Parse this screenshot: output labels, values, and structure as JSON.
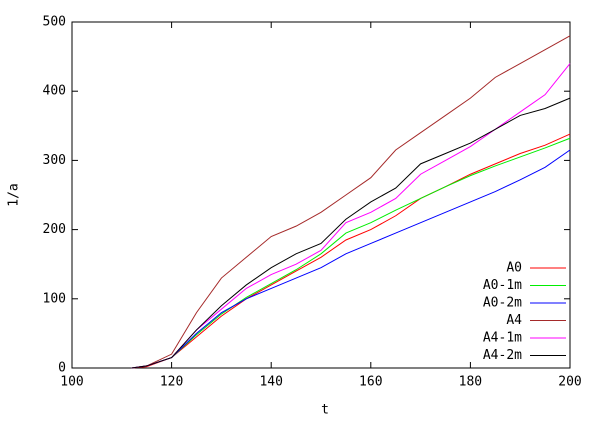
{
  "chart_data": {
    "type": "line",
    "x_label": "t",
    "y_label": "1/a",
    "x": [
      112,
      115,
      120,
      125,
      130,
      135,
      140,
      145,
      150,
      155,
      160,
      165,
      170,
      175,
      180,
      185,
      190,
      195,
      200
    ],
    "series": [
      {
        "name": "A0",
        "color": "#ff0000",
        "values": [
          0,
          2,
          15,
          45,
          75,
          100,
          120,
          140,
          160,
          185,
          200,
          220,
          245,
          262,
          280,
          295,
          310,
          322,
          338
        ]
      },
      {
        "name": "A0-1m",
        "color": "#00ee00",
        "values": [
          0,
          3,
          15,
          48,
          78,
          102,
          122,
          142,
          165,
          195,
          210,
          228,
          245,
          262,
          278,
          292,
          305,
          318,
          332
        ]
      },
      {
        "name": "A0-2m",
        "color": "#0000ff",
        "values": [
          0,
          3,
          15,
          50,
          80,
          100,
          115,
          130,
          145,
          165,
          180,
          195,
          210,
          225,
          240,
          255,
          272,
          290,
          315
        ]
      },
      {
        "name": "A4",
        "color": "#a52a2a",
        "values": [
          0,
          3,
          20,
          80,
          130,
          160,
          190,
          205,
          225,
          250,
          275,
          315,
          340,
          365,
          390,
          420,
          440,
          460,
          480
        ]
      },
      {
        "name": "A4-1m",
        "color": "#ff00ff",
        "values": [
          0,
          3,
          15,
          55,
          85,
          115,
          135,
          150,
          170,
          210,
          225,
          245,
          280,
          300,
          320,
          345,
          370,
          395,
          440
        ]
      },
      {
        "name": "A4-2m",
        "color": "#000000",
        "values": [
          0,
          3,
          15,
          55,
          90,
          120,
          145,
          165,
          180,
          215,
          240,
          260,
          295,
          310,
          325,
          345,
          365,
          375,
          390
        ]
      }
    ],
    "xlim": [
      100,
      200
    ],
    "ylim": [
      0,
      500
    ],
    "xticks": [
      100,
      120,
      140,
      160,
      180,
      200
    ],
    "yticks": [
      0,
      100,
      200,
      300,
      400,
      500
    ],
    "legend": "lower right"
  }
}
